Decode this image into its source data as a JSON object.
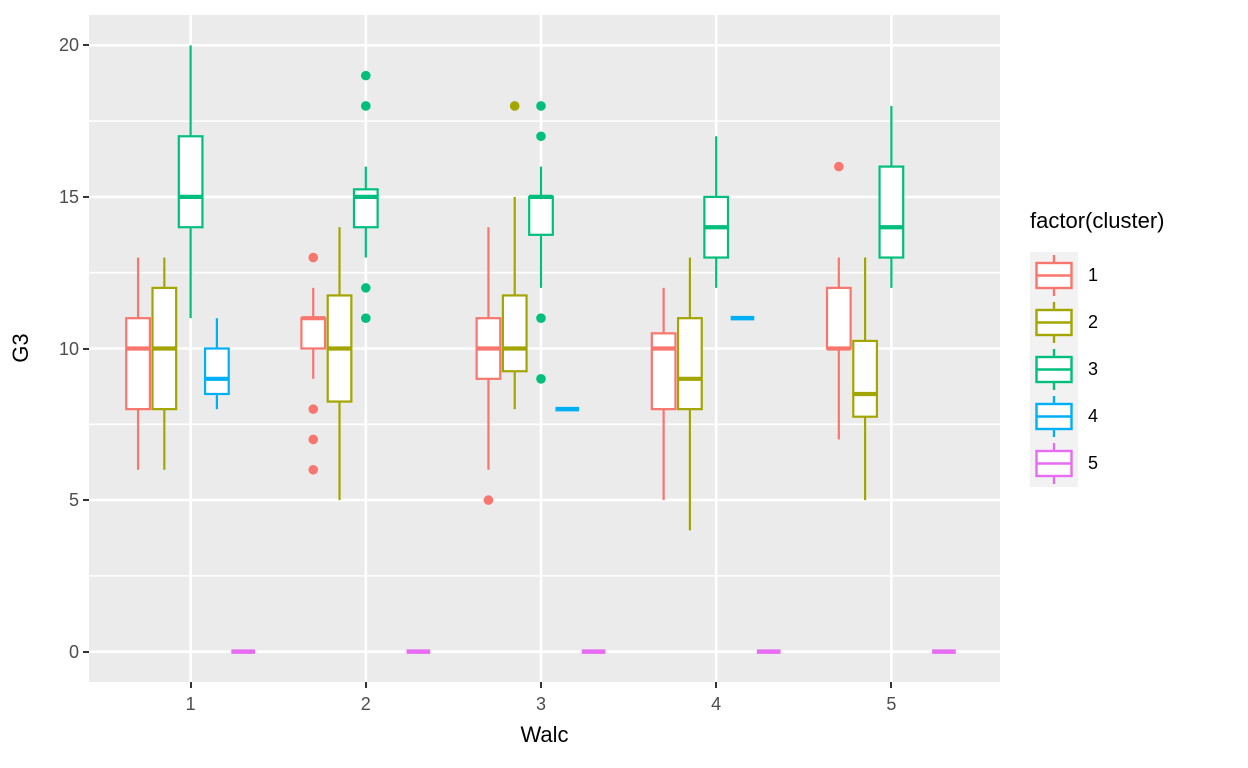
{
  "figure": {
    "background": "#FFFFFF",
    "panel_background": "#EBEBEB",
    "grid_color": "#FFFFFF",
    "tick_mark_color": "#333333",
    "tick_label_color": "#4D4D4D",
    "legend_key_background": "#F2F2F2"
  },
  "chart_data": {
    "type": "boxplot",
    "title": "",
    "xlabel": "Walc",
    "ylabel": "G3",
    "x_ticks": [
      1,
      2,
      3,
      4,
      5
    ],
    "y_ticks": [
      0,
      5,
      10,
      15,
      20
    ],
    "xlim": [
      0.42,
      5.62
    ],
    "ylim": [
      -1,
      21
    ],
    "grid": {
      "major_y": [
        0,
        5,
        10,
        15,
        20
      ],
      "minor_y": [
        2.5,
        7.5,
        12.5,
        17.5
      ],
      "major_x": [
        1,
        2,
        3,
        4,
        5
      ]
    },
    "dodge_slot_width": 0.15,
    "box_width": 0.135,
    "legend": {
      "title": "factor(cluster)",
      "position": "right",
      "entries": [
        {
          "label": "1",
          "color": "#F8766D"
        },
        {
          "label": "2",
          "color": "#A3A500"
        },
        {
          "label": "3",
          "color": "#00BF7D"
        },
        {
          "label": "4",
          "color": "#00B0F6"
        },
        {
          "label": "5",
          "color": "#E76BF3"
        }
      ]
    },
    "series": [
      {
        "name": "1",
        "color": "#F8766D",
        "boxes": [
          {
            "x": 1,
            "min": 6,
            "q1": 8,
            "median": 10,
            "q3": 11,
            "max": 13,
            "outliers": []
          },
          {
            "x": 2,
            "min": 9,
            "q1": 10,
            "median": 11,
            "q3": 11,
            "max": 12,
            "outliers": [
              13,
              8,
              7,
              6
            ]
          },
          {
            "x": 3,
            "min": 6,
            "q1": 9,
            "median": 10,
            "q3": 11,
            "max": 14,
            "outliers": [
              5
            ]
          },
          {
            "x": 4,
            "min": 5,
            "q1": 8,
            "median": 10,
            "q3": 10.5,
            "max": 12,
            "outliers": []
          },
          {
            "x": 5,
            "min": 7,
            "q1": 10,
            "median": 10,
            "q3": 12,
            "max": 13,
            "outliers": [
              16
            ]
          }
        ]
      },
      {
        "name": "2",
        "color": "#A3A500",
        "boxes": [
          {
            "x": 1,
            "min": 6,
            "q1": 8,
            "median": 10,
            "q3": 12,
            "max": 13,
            "outliers": []
          },
          {
            "x": 2,
            "min": 5,
            "q1": 8.25,
            "median": 10,
            "q3": 11.75,
            "max": 14,
            "outliers": []
          },
          {
            "x": 3,
            "min": 8,
            "q1": 9.25,
            "median": 10,
            "q3": 11.75,
            "max": 15,
            "outliers": [
              18
            ]
          },
          {
            "x": 4,
            "min": 4,
            "q1": 8,
            "median": 9,
            "q3": 11,
            "max": 13,
            "outliers": []
          },
          {
            "x": 5,
            "min": 5,
            "q1": 7.75,
            "median": 8.5,
            "q3": 10.25,
            "max": 13,
            "outliers": []
          }
        ]
      },
      {
        "name": "3",
        "color": "#00BF7D",
        "boxes": [
          {
            "x": 1,
            "min": 11,
            "q1": 14,
            "median": 15,
            "q3": 17,
            "max": 20,
            "outliers": []
          },
          {
            "x": 2,
            "min": 13,
            "q1": 14,
            "median": 15,
            "q3": 15.25,
            "max": 16,
            "outliers": [
              19,
              18,
              12,
              11
            ]
          },
          {
            "x": 3,
            "min": 12,
            "q1": 13.75,
            "median": 15,
            "q3": 15,
            "max": 16,
            "outliers": [
              18,
              17,
              11,
              9
            ]
          },
          {
            "x": 4,
            "min": 12,
            "q1": 13,
            "median": 14,
            "q3": 15,
            "max": 17,
            "outliers": []
          },
          {
            "x": 5,
            "min": 12,
            "q1": 13,
            "median": 14,
            "q3": 16,
            "max": 18,
            "outliers": []
          }
        ]
      },
      {
        "name": "4",
        "color": "#00B0F6",
        "boxes": [
          {
            "x": 1,
            "min": 8,
            "q1": 8.5,
            "median": 9,
            "q3": 10,
            "max": 11,
            "outliers": []
          },
          {
            "x": 3,
            "min": 8,
            "q1": 8,
            "median": 8,
            "q3": 8,
            "max": 8,
            "outliers": []
          },
          {
            "x": 4,
            "min": 11,
            "q1": 11,
            "median": 11,
            "q3": 11,
            "max": 11,
            "outliers": []
          }
        ]
      },
      {
        "name": "5",
        "color": "#E76BF3",
        "boxes": [
          {
            "x": 1,
            "min": 0,
            "q1": 0,
            "median": 0,
            "q3": 0,
            "max": 0,
            "outliers": []
          },
          {
            "x": 2,
            "min": 0,
            "q1": 0,
            "median": 0,
            "q3": 0,
            "max": 0,
            "outliers": []
          },
          {
            "x": 3,
            "min": 0,
            "q1": 0,
            "median": 0,
            "q3": 0,
            "max": 0,
            "outliers": []
          },
          {
            "x": 4,
            "min": 0,
            "q1": 0,
            "median": 0,
            "q3": 0,
            "max": 0,
            "outliers": []
          },
          {
            "x": 5,
            "min": 0,
            "q1": 0,
            "median": 0,
            "q3": 0,
            "max": 0,
            "outliers": []
          }
        ]
      }
    ]
  }
}
